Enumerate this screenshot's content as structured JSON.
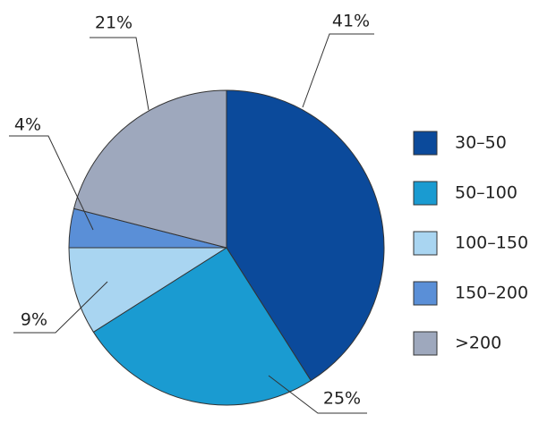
{
  "chart_data": {
    "type": "pie",
    "categories": [
      "30–50",
      "50–100",
      "100–150",
      "150–200",
      ">200"
    ],
    "values": [
      41,
      25,
      9,
      4,
      21
    ],
    "value_labels": [
      "41%",
      "25%",
      "9%",
      "4%",
      "21%"
    ],
    "colors": [
      "#0b4a9b",
      "#1a9bd1",
      "#a9d5f1",
      "#5a8fd7",
      "#9ea8bd"
    ],
    "legend": "right"
  }
}
